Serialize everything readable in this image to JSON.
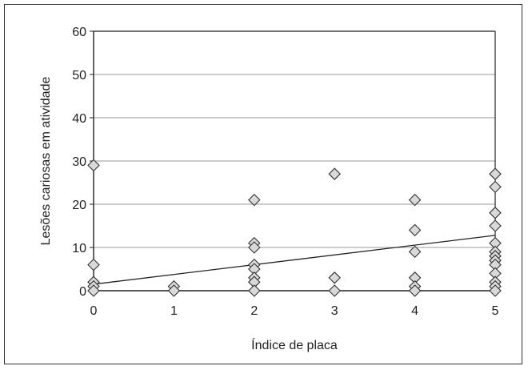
{
  "chart_data": {
    "type": "scatter",
    "title": "",
    "xlabel": "Índice de placa",
    "ylabel": "Lesões cariosas em atividade",
    "xlim": [
      0,
      5
    ],
    "ylim": [
      0,
      60
    ],
    "x_ticks": [
      "0",
      "1",
      "2",
      "3",
      "4",
      "5"
    ],
    "y_ticks": [
      "0",
      "10",
      "20",
      "30",
      "40",
      "50",
      "60"
    ],
    "grid": "horizontal",
    "marker": "diamond",
    "colors": {
      "marker_fill": "#d9d9d9",
      "marker_stroke": "#333333",
      "grid": "#9a9a9a",
      "axis": "#222222",
      "trendline": "#222222"
    },
    "series": [
      {
        "points": [
          [
            0,
            29
          ],
          [
            0,
            6
          ],
          [
            0,
            2
          ],
          [
            0,
            1
          ],
          [
            0,
            0
          ],
          [
            1,
            1
          ],
          [
            1,
            0
          ],
          [
            2,
            21
          ],
          [
            2,
            11
          ],
          [
            2,
            10
          ],
          [
            2,
            6
          ],
          [
            2,
            5
          ],
          [
            2,
            3
          ],
          [
            2,
            2
          ],
          [
            2,
            0
          ],
          [
            3,
            27
          ],
          [
            3,
            3
          ],
          [
            3,
            0
          ],
          [
            4,
            21
          ],
          [
            4,
            14
          ],
          [
            4,
            9
          ],
          [
            4,
            3
          ],
          [
            4,
            1
          ],
          [
            4,
            0
          ],
          [
            5,
            27
          ],
          [
            5,
            24
          ],
          [
            5,
            18
          ],
          [
            5,
            15
          ],
          [
            5,
            11
          ],
          [
            5,
            9
          ],
          [
            5,
            8
          ],
          [
            5,
            7
          ],
          [
            5,
            6
          ],
          [
            5,
            4
          ],
          [
            5,
            2
          ],
          [
            5,
            1
          ],
          [
            5,
            0
          ]
        ]
      }
    ],
    "trendline": {
      "x": [
        0,
        5
      ],
      "y": [
        1.5,
        12.8
      ]
    }
  }
}
